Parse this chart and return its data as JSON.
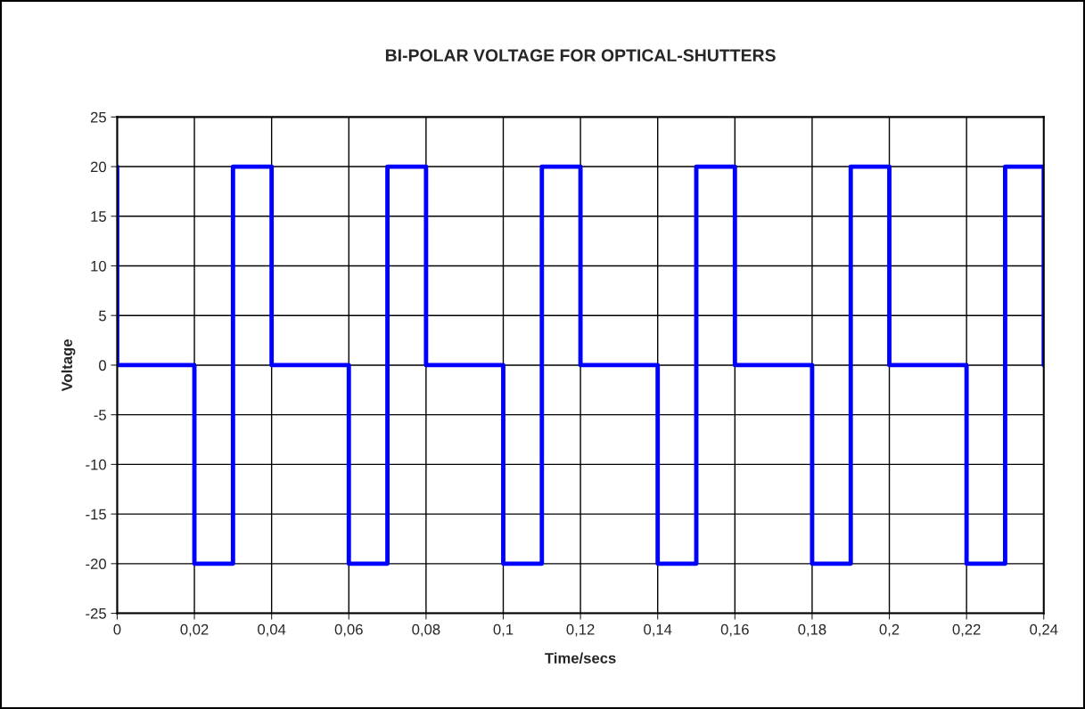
{
  "chart_data": {
    "type": "line",
    "title": "BI-POLAR VOLTAGE FOR OPTICAL-SHUTTERS",
    "xlabel": "Time/secs",
    "ylabel": "Voltage",
    "series": [
      {
        "color": "#0000ff",
        "x": [
          0,
          0,
          0.02,
          0.02,
          0.03,
          0.03,
          0.04,
          0.04,
          0.06,
          0.06,
          0.07,
          0.07,
          0.08,
          0.08,
          0.1,
          0.1,
          0.11,
          0.11,
          0.12,
          0.12,
          0.14,
          0.14,
          0.15,
          0.15,
          0.16,
          0.16,
          0.18,
          0.18,
          0.19,
          0.19,
          0.2,
          0.2,
          0.22,
          0.22,
          0.23,
          0.23,
          0.24,
          0.24
        ],
        "values": [
          20,
          0,
          0,
          -20,
          -20,
          20,
          20,
          0,
          0,
          -20,
          -20,
          20,
          20,
          0,
          0,
          -20,
          -20,
          20,
          20,
          0,
          0,
          -20,
          -20,
          20,
          20,
          0,
          0,
          -20,
          -20,
          20,
          20,
          0,
          0,
          -20,
          -20,
          20,
          20,
          0
        ]
      }
    ],
    "xlim": [
      0,
      0.24
    ],
    "ylim": [
      -25,
      25
    ],
    "xticks": [
      0,
      {
        "value": 0.02,
        "label": "0,02"
      },
      {
        "value": 0.04,
        "label": "0,04"
      },
      {
        "value": 0.06,
        "label": "0,06"
      },
      {
        "value": 0.08,
        "label": "0,08"
      },
      {
        "value": 0.1,
        "label": "0,1"
      },
      {
        "value": 0.12,
        "label": "0,12"
      },
      {
        "value": 0.14,
        "label": "0,14"
      },
      {
        "value": 0.16,
        "label": "0,16"
      },
      {
        "value": 0.18,
        "label": "0,18"
      },
      {
        "value": 0.2,
        "label": "0,2"
      },
      {
        "value": 0.22,
        "label": "0,22"
      },
      {
        "value": 0.24,
        "label": "0,24"
      }
    ],
    "yticks": [
      -25,
      -20,
      -15,
      -10,
      -5,
      0,
      5,
      10,
      15,
      20,
      25
    ],
    "grid": true,
    "line_style": "solid",
    "marker": "none"
  }
}
